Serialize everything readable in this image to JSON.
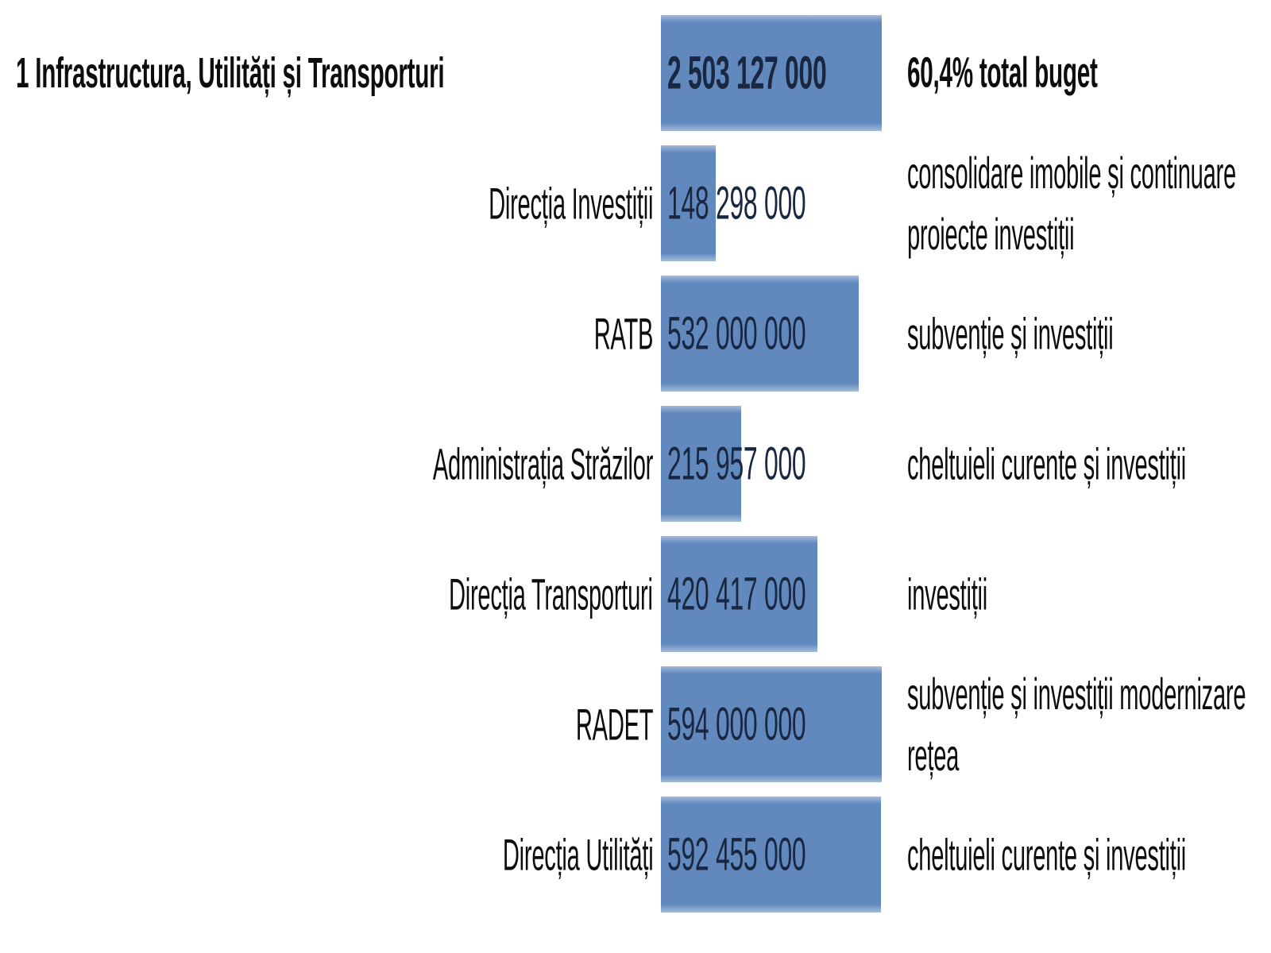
{
  "colors": {
    "bar_fill": "#6289be",
    "bar_fill_light": "#a5bad9",
    "value_text": "#1a2740",
    "text": "#0d0d0d",
    "background": "#ffffff"
  },
  "chart_data": {
    "type": "bar",
    "orientation": "horizontal",
    "title": "1 Infrastructura, Utilități și Transporturi",
    "title_value": 2503127000,
    "title_value_label": "2 503 127 000",
    "title_note": "60,4% total buget",
    "categories": [
      "Direcția Investiții",
      "RATB",
      "Administrația Străzilor",
      "Direcția Transporturi",
      "RADET",
      "Direcția Utilități"
    ],
    "values": [
      148298000,
      532000000,
      215957000,
      420417000,
      594000000,
      592455000
    ],
    "value_labels": [
      "148 298 000",
      "532 000 000",
      "215 957 000",
      "420 417 000",
      "594 000 000",
      "592 455 000"
    ],
    "xlim": [
      0,
      594000000
    ],
    "legend": "none",
    "grid": false,
    "rows": [
      {
        "is_total": true,
        "label": "1 Infrastructura, Utilități și Transporturi",
        "value": 2503127000,
        "value_label": "2 503 127 000",
        "note_lines": [
          "60,4% total buget"
        ]
      },
      {
        "is_total": false,
        "label": "Direcția Investiții",
        "value": 148298000,
        "value_label": "148 298 000",
        "note_lines": [
          "consolidare imobile și continuare",
          "proiecte investiții"
        ]
      },
      {
        "is_total": false,
        "label": "RATB",
        "value": 532000000,
        "value_label": "532 000 000",
        "note_lines": [
          "subvenție și investiții"
        ]
      },
      {
        "is_total": false,
        "label": "Administrația Străzilor",
        "value": 215957000,
        "value_label": "215 957 000",
        "note_lines": [
          "cheltuieli curente și investiții"
        ]
      },
      {
        "is_total": false,
        "label": "Direcția Transporturi",
        "value": 420417000,
        "value_label": "420 417 000",
        "note_lines": [
          "investiții"
        ]
      },
      {
        "is_total": false,
        "label": "RADET",
        "value": 594000000,
        "value_label": "594 000 000",
        "note_lines": [
          "subvenție și investiții modernizare",
          "rețea"
        ]
      },
      {
        "is_total": false,
        "label": "Direcția Utilități",
        "value": 592455000,
        "value_label": "592 455 000",
        "note_lines": [
          "cheltuieli curente și investiții"
        ]
      }
    ]
  }
}
